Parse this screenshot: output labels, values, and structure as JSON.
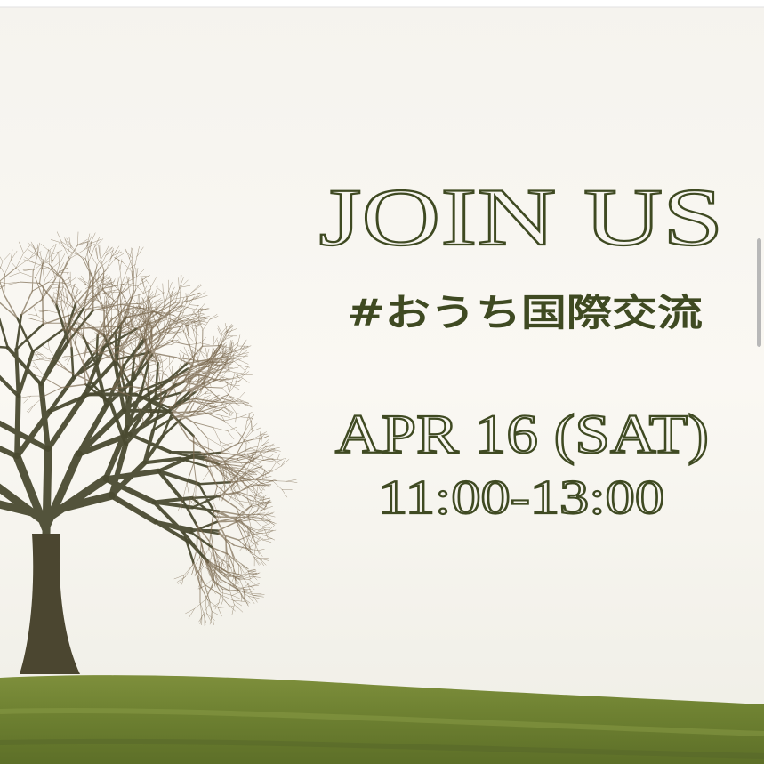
{
  "poster": {
    "headline": "JOIN US",
    "hashtag": "#おうち国際交流",
    "date": "APR 16 (SAT)",
    "time": "11:00-13:00"
  }
}
